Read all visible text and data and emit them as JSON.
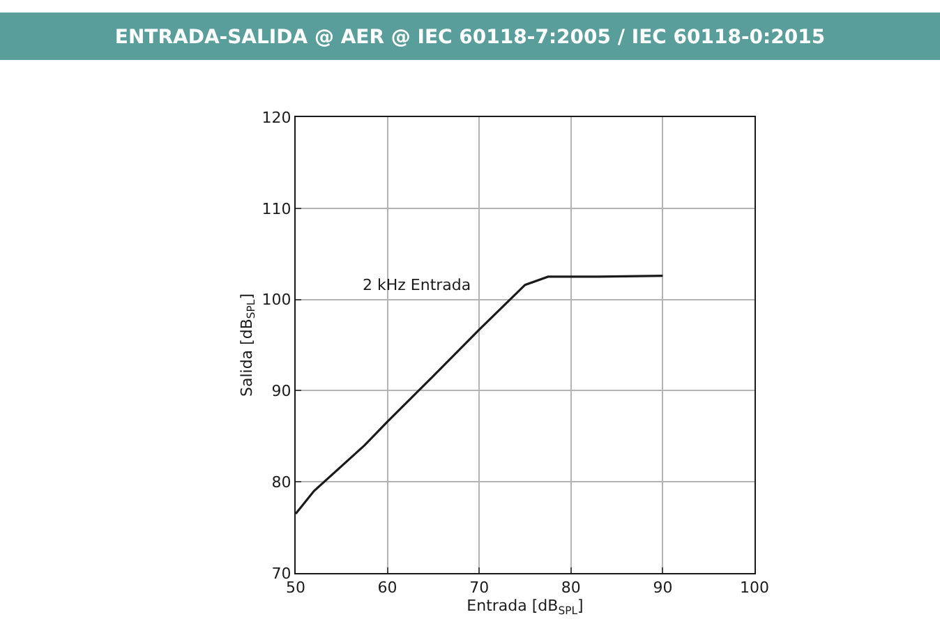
{
  "chart_data": {
    "type": "line",
    "title": "ENTRADA-SALIDA @ AER @ IEC 60118-7:2005 / IEC 60118-0:2015",
    "xlabel": "Entrada [dB$_{SPL}$]",
    "ylabel": "Salida [dB$_{SPL}$]",
    "series": [
      {
        "name": "2 kHz Entrada",
        "color": "#1a1a1a",
        "x": [
          50,
          52,
          57.5,
          60,
          65,
          70,
          75,
          77.5,
          83,
          90
        ],
        "values": [
          76.5,
          79,
          84,
          86.6,
          91.6,
          96.7,
          101.6,
          102.5,
          102.5,
          102.6
        ]
      }
    ],
    "xlim": [
      50,
      100
    ],
    "xticks": [
      50,
      60,
      70,
      80,
      90,
      100
    ],
    "ylim": [
      70,
      120
    ],
    "yticks": [
      70,
      80,
      90,
      100,
      110,
      120
    ],
    "grid": true,
    "legend": false,
    "marker": "none",
    "line_style": "solid"
  }
}
